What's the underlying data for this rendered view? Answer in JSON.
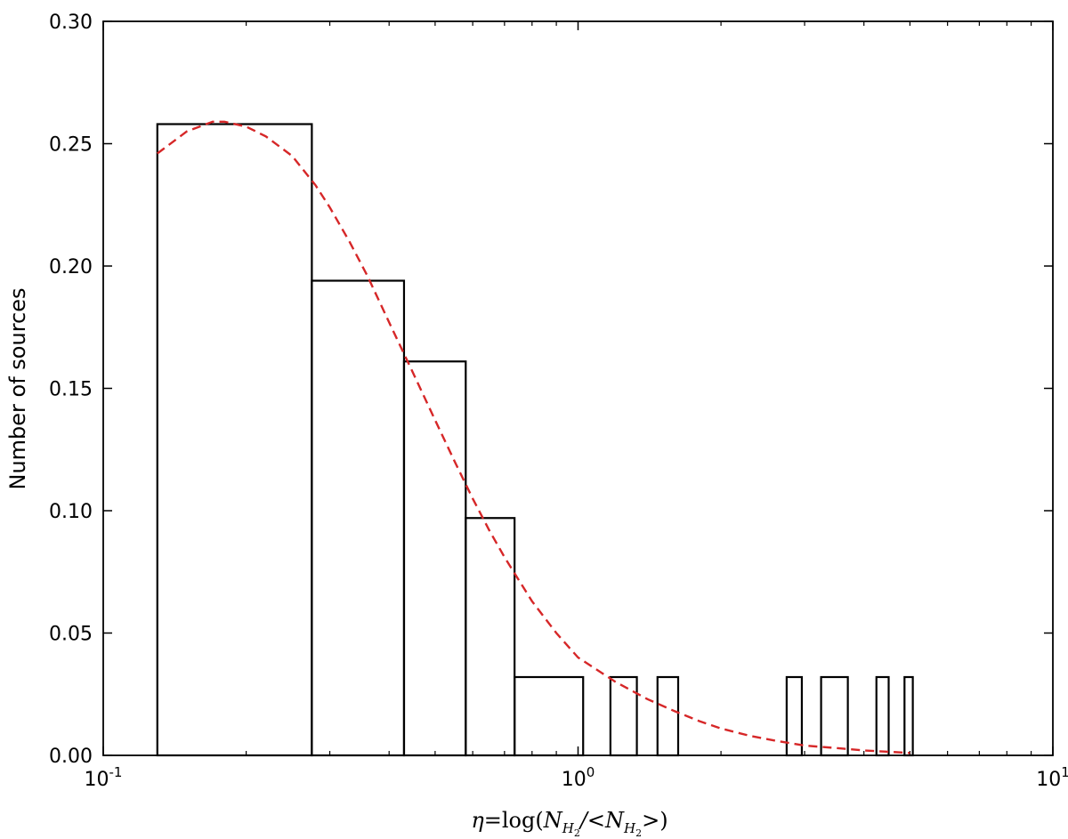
{
  "chart_data": {
    "type": "histogram",
    "xscale": "log",
    "xlim": [
      0.1,
      10
    ],
    "ylim": [
      0,
      0.3
    ],
    "ylabel": "Number of sources",
    "xlabel": {
      "lhs": "η",
      "eq": "=",
      "fn": "log(",
      "N": "N",
      "H": "H",
      "two": "2",
      "slash": "/",
      "lt": "<",
      "gt": ">",
      "close": ")"
    },
    "yticks": [
      {
        "value": 0.0,
        "label": "0.00"
      },
      {
        "value": 0.05,
        "label": "0.05"
      },
      {
        "value": 0.1,
        "label": "0.10"
      },
      {
        "value": 0.15,
        "label": "0.15"
      },
      {
        "value": 0.2,
        "label": "0.20"
      },
      {
        "value": 0.25,
        "label": "0.25"
      },
      {
        "value": 0.3,
        "label": "0.30"
      }
    ],
    "xticks": [
      {
        "value": 0.1,
        "base": "10",
        "exp": "-1"
      },
      {
        "value": 1,
        "base": "10",
        "exp": "0"
      },
      {
        "value": 10,
        "base": "10",
        "exp": "1"
      }
    ],
    "histogram": {
      "color": "#000000",
      "bins": [
        {
          "x0": 0.13,
          "x1": 0.275,
          "value": 0.258
        },
        {
          "x0": 0.275,
          "x1": 0.43,
          "value": 0.194
        },
        {
          "x0": 0.43,
          "x1": 0.58,
          "value": 0.161
        },
        {
          "x0": 0.58,
          "x1": 0.735,
          "value": 0.097
        },
        {
          "x0": 0.735,
          "x1": 1.025,
          "value": 0.032
        },
        {
          "x0": 1.17,
          "x1": 1.33,
          "value": 0.032
        },
        {
          "x0": 1.47,
          "x1": 1.625,
          "value": 0.032
        },
        {
          "x0": 2.75,
          "x1": 2.96,
          "value": 0.032
        },
        {
          "x0": 3.25,
          "x1": 3.7,
          "value": 0.032
        },
        {
          "x0": 4.25,
          "x1": 4.51,
          "value": 0.032
        },
        {
          "x0": 4.87,
          "x1": 5.07,
          "value": 0.032
        }
      ]
    },
    "fit": {
      "color": "#d62728",
      "style": "dashed",
      "points": [
        [
          0.13,
          0.246
        ],
        [
          0.15,
          0.255
        ],
        [
          0.17,
          0.259
        ],
        [
          0.18,
          0.259
        ],
        [
          0.2,
          0.257
        ],
        [
          0.22,
          0.253
        ],
        [
          0.25,
          0.245
        ],
        [
          0.28,
          0.233
        ],
        [
          0.3,
          0.224
        ],
        [
          0.33,
          0.21
        ],
        [
          0.36,
          0.196
        ],
        [
          0.4,
          0.177
        ],
        [
          0.45,
          0.156
        ],
        [
          0.5,
          0.137
        ],
        [
          0.55,
          0.12
        ],
        [
          0.6,
          0.105
        ],
        [
          0.65,
          0.092
        ],
        [
          0.7,
          0.081
        ],
        [
          0.8,
          0.063
        ],
        [
          0.9,
          0.05
        ],
        [
          1.0,
          0.04
        ],
        [
          1.2,
          0.03
        ],
        [
          1.4,
          0.023
        ],
        [
          1.6,
          0.018
        ],
        [
          1.8,
          0.014
        ],
        [
          2.0,
          0.011
        ],
        [
          2.3,
          0.008
        ],
        [
          2.6,
          0.006
        ],
        [
          3.0,
          0.004
        ],
        [
          3.5,
          0.003
        ],
        [
          4.0,
          0.002
        ],
        [
          4.5,
          0.0015
        ],
        [
          5.0,
          0.001
        ]
      ]
    }
  }
}
